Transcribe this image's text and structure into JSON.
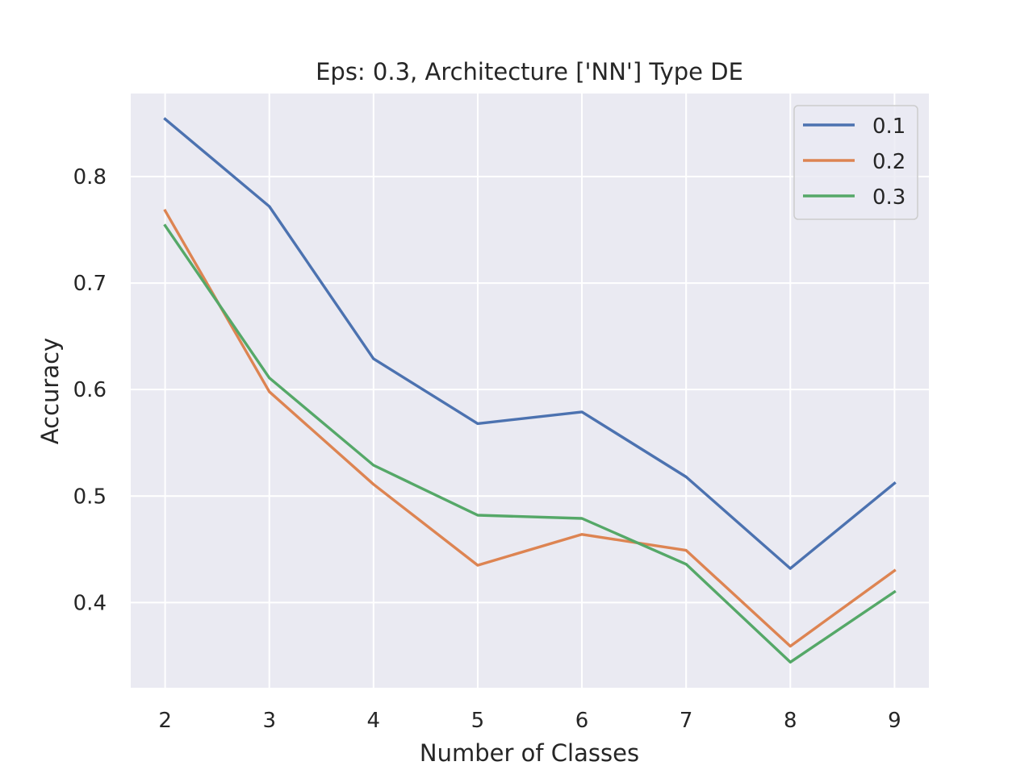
{
  "chart_data": {
    "type": "line",
    "title": "Eps: 0.3, Architecture ['NN'] Type DE",
    "xlabel": "Number of Classes",
    "ylabel": "Accuracy",
    "x": [
      2,
      3,
      4,
      5,
      6,
      7,
      8,
      9
    ],
    "xticks": [
      "2",
      "3",
      "4",
      "5",
      "6",
      "7",
      "8",
      "9"
    ],
    "yticks": [
      0.4,
      0.5,
      0.6,
      0.7,
      0.8
    ],
    "ytick_labels": [
      "0.4",
      "0.5",
      "0.6",
      "0.7",
      "0.8"
    ],
    "xlim": [
      1.67,
      9.33
    ],
    "ylim": [
      0.32,
      0.878
    ],
    "grid": true,
    "legend_position": "top-right",
    "background": "#eaeaf2",
    "series": [
      {
        "name": "0.1",
        "color": "#4c72b0",
        "values": [
          0.854,
          0.772,
          0.629,
          0.568,
          0.579,
          0.518,
          0.432,
          0.512
        ]
      },
      {
        "name": "0.2",
        "color": "#dd8452",
        "values": [
          0.768,
          0.598,
          0.511,
          0.435,
          0.464,
          0.449,
          0.359,
          0.43
        ]
      },
      {
        "name": "0.3",
        "color": "#55a868",
        "values": [
          0.754,
          0.611,
          0.529,
          0.482,
          0.479,
          0.436,
          0.344,
          0.41
        ]
      }
    ]
  }
}
